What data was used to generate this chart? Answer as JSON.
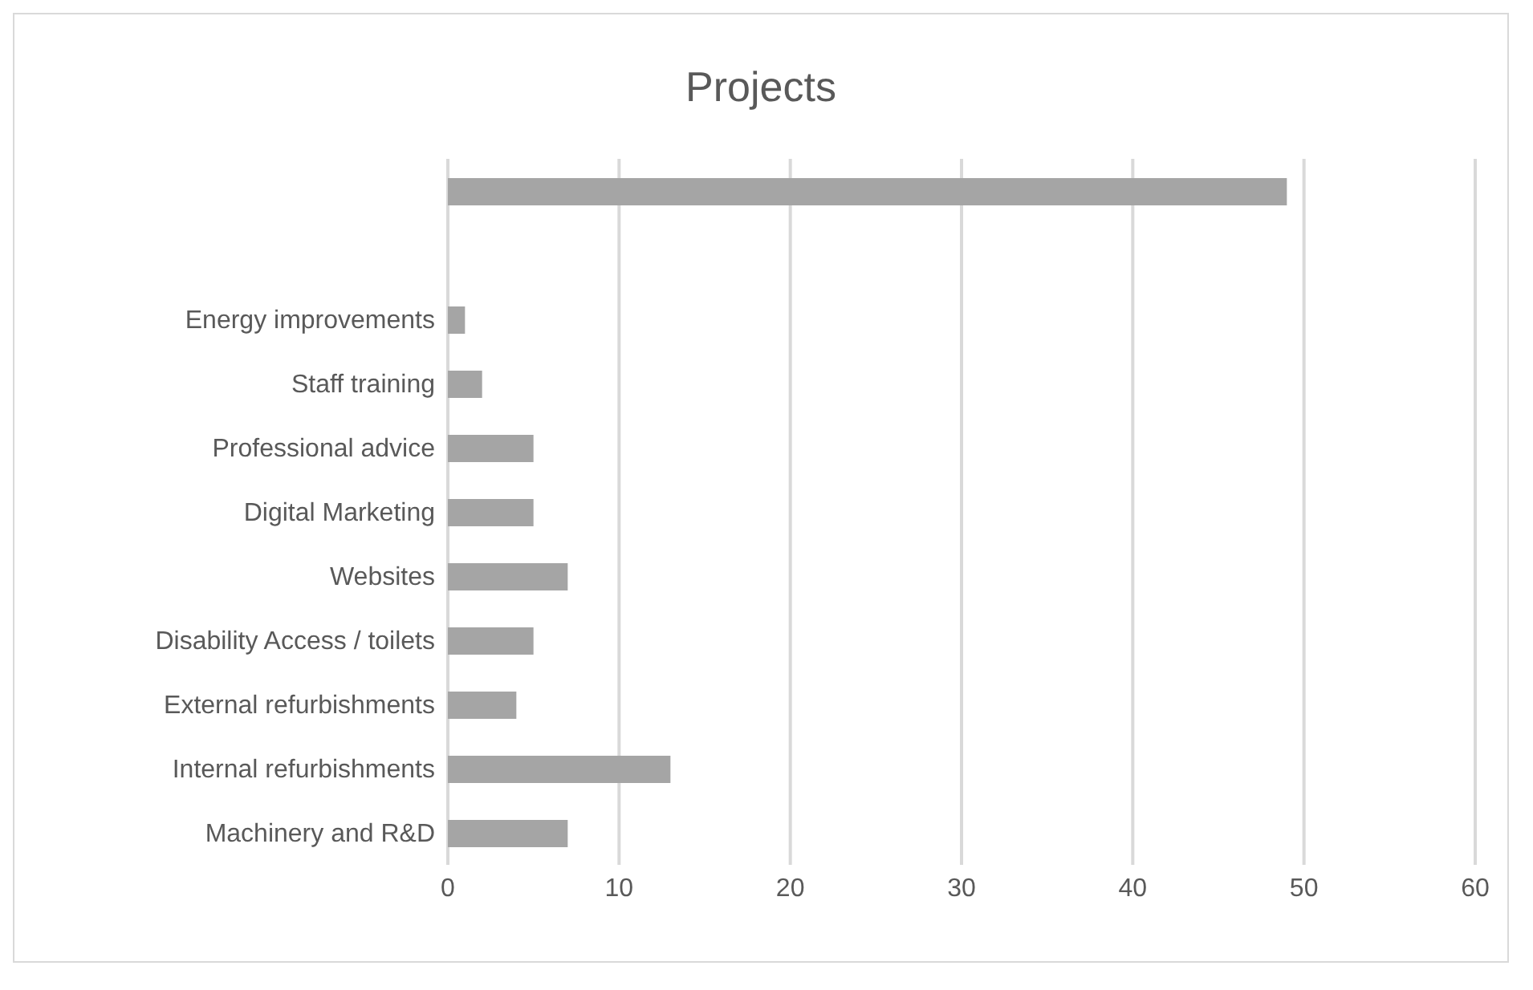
{
  "chart_data": {
    "type": "bar",
    "orientation": "horizontal",
    "title": "Projects",
    "categories": [
      null,
      null,
      "Energy improvements",
      "Staff training",
      "Professional advice",
      "Digital Marketing",
      "Websites",
      "Disability Access / toilets",
      "External refurbishments",
      "Internal refurbishments",
      "Machinery and R&D"
    ],
    "values": [
      49,
      null,
      1,
      2,
      5,
      5,
      7,
      5,
      4,
      13,
      7
    ],
    "color": "#a5a5a5",
    "xlim": [
      0,
      60
    ],
    "xticks": [
      0,
      10,
      20,
      30,
      40,
      50,
      60
    ],
    "grid": "x"
  }
}
